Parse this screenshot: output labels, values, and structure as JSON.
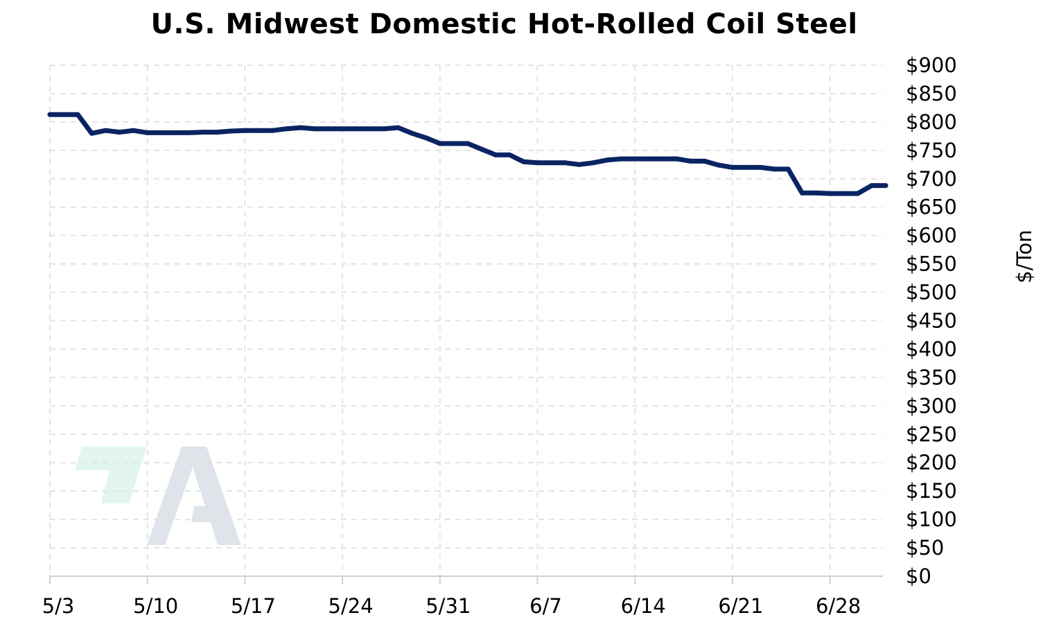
{
  "chart_data": {
    "type": "line",
    "title": "U.S. Midwest Domestic Hot-Rolled Coil Steel",
    "xlabel": "",
    "ylabel": "$/Ton",
    "ylim": [
      0,
      900
    ],
    "y_ticks": [
      "$0",
      "$50",
      "$100",
      "$150",
      "$200",
      "$250",
      "$300",
      "$350",
      "$400",
      "$450",
      "$500",
      "$550",
      "$600",
      "$650",
      "$700",
      "$750",
      "$800",
      "$850",
      "$900"
    ],
    "y_tick_values": [
      0,
      50,
      100,
      150,
      200,
      250,
      300,
      350,
      400,
      450,
      500,
      550,
      600,
      650,
      700,
      750,
      800,
      850,
      900
    ],
    "x_ticks": [
      "5/3",
      "5/10",
      "5/17",
      "5/24",
      "5/31",
      "6/7",
      "6/14",
      "6/21",
      "6/28"
    ],
    "x_range": [
      "5/3",
      "7/2"
    ],
    "y_axis_position": "right",
    "grid": true,
    "legend": "none",
    "series": [
      {
        "color": "#0a2463",
        "x": [
          "5/3",
          "5/4",
          "5/5",
          "5/6",
          "5/7",
          "5/8",
          "5/9",
          "5/10",
          "5/11",
          "5/12",
          "5/13",
          "5/14",
          "5/15",
          "5/16",
          "5/17",
          "5/18",
          "5/19",
          "5/20",
          "5/21",
          "5/22",
          "5/23",
          "5/24",
          "5/25",
          "5/26",
          "5/27",
          "5/28",
          "5/29",
          "5/30",
          "5/31",
          "6/1",
          "6/2",
          "6/3",
          "6/4",
          "6/5",
          "6/6",
          "6/7",
          "6/8",
          "6/9",
          "6/10",
          "6/11",
          "6/12",
          "6/13",
          "6/14",
          "6/15",
          "6/16",
          "6/17",
          "6/18",
          "6/19",
          "6/20",
          "6/21",
          "6/22",
          "6/23",
          "6/24",
          "6/25",
          "6/26",
          "6/27",
          "6/28",
          "6/29",
          "6/30",
          "7/1",
          "7/2"
        ],
        "values": [
          813,
          813,
          813,
          780,
          785,
          782,
          785,
          781,
          781,
          781,
          781,
          782,
          782,
          784,
          785,
          785,
          785,
          788,
          790,
          788,
          788,
          788,
          788,
          788,
          788,
          790,
          780,
          772,
          762,
          762,
          762,
          752,
          742,
          742,
          730,
          728,
          728,
          728,
          725,
          728,
          733,
          735,
          735,
          735,
          735,
          735,
          731,
          731,
          724,
          720,
          720,
          720,
          717,
          717,
          675,
          675,
          674,
          674,
          674,
          688,
          688
        ]
      }
    ]
  },
  "watermark": {
    "green": "#e2f6ee",
    "gray": "#dfe3ea"
  }
}
